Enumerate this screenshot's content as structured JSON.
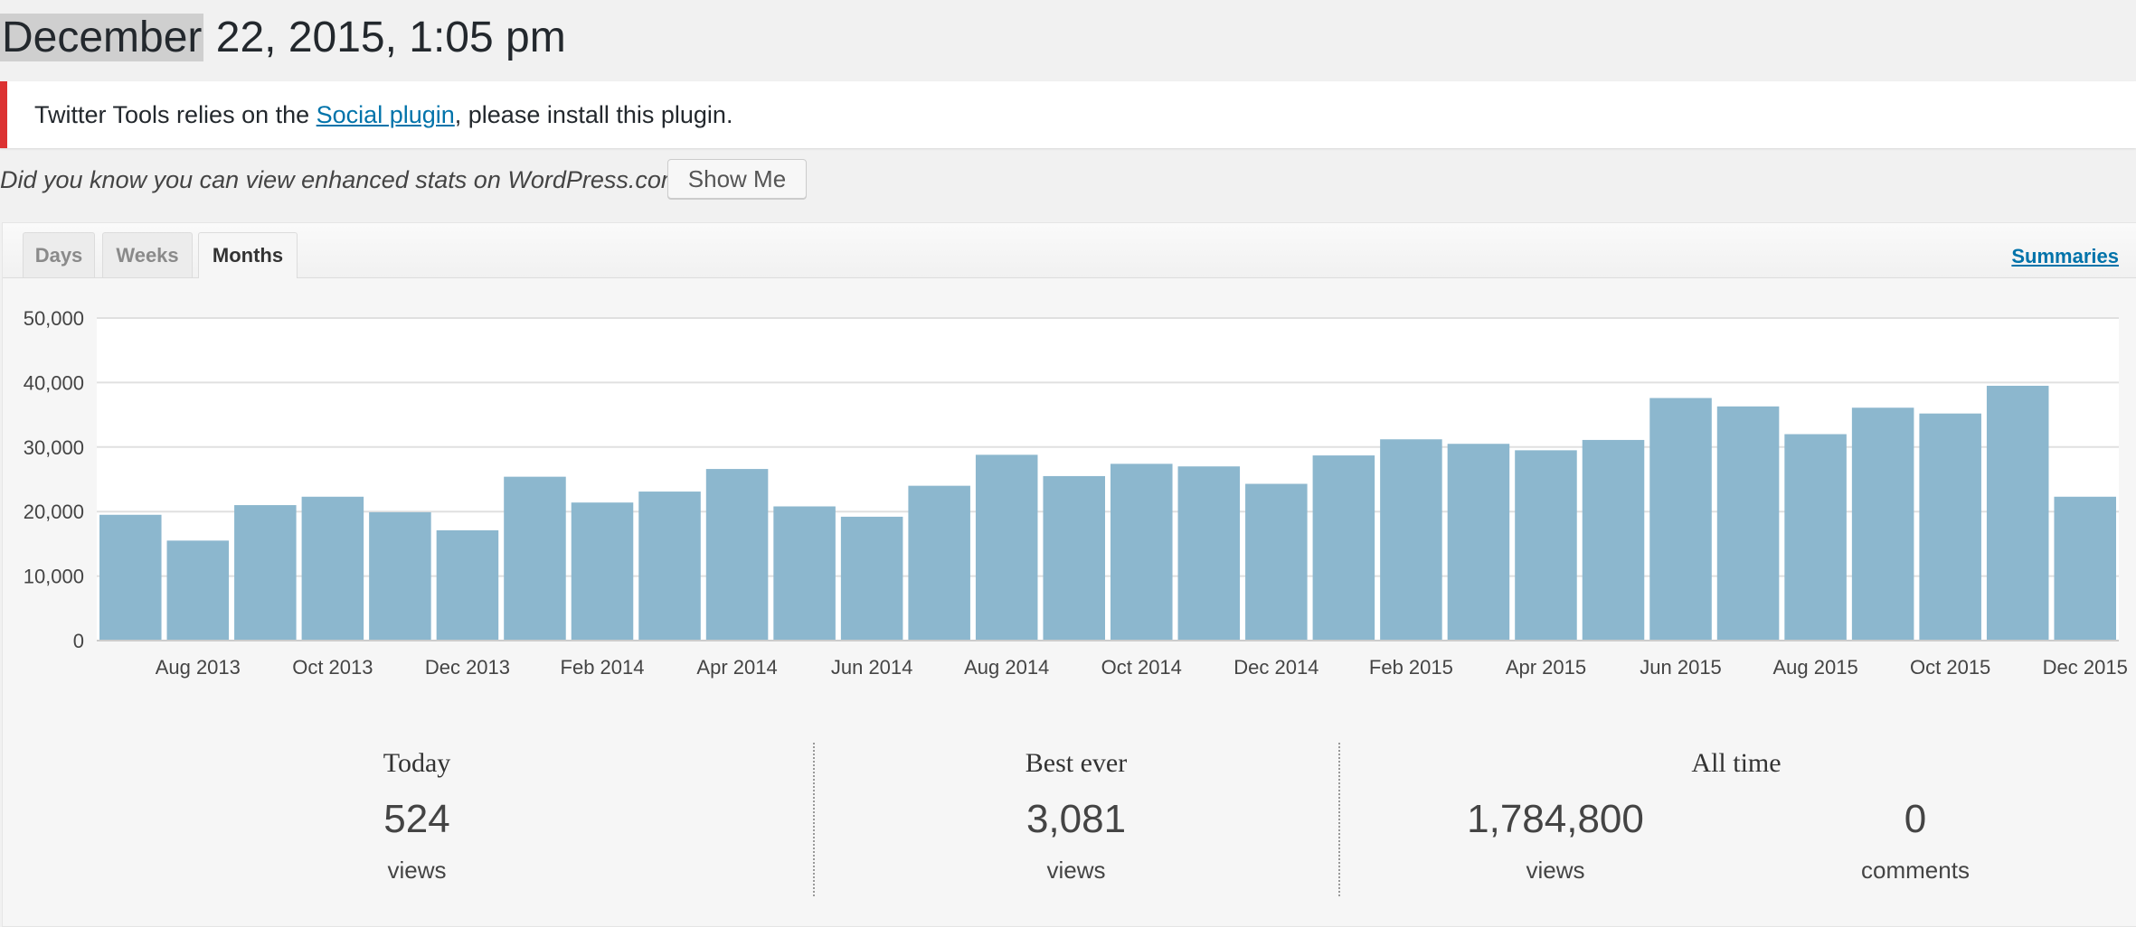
{
  "header": {
    "date_highlight": "December",
    "date_rest": " 22, 2015, 1:05 pm"
  },
  "notice": {
    "before": "Twitter Tools relies on the ",
    "link": "Social plugin",
    "after": ", please install this plugin."
  },
  "promo": {
    "text": "Did you know you can view enhanced stats on WordPress.com?",
    "button": "Show Me"
  },
  "tabs": {
    "days": "Days",
    "weeks": "Weeks",
    "months": "Months",
    "active": "Months"
  },
  "summaries_link": "Summaries",
  "colors": {
    "bar": "#8cb7ce",
    "accent": "#0073aa",
    "error": "#dc3232"
  },
  "chart_data": {
    "type": "bar",
    "categories": [
      "Jul 2013",
      "Aug 2013",
      "Sep 2013",
      "Oct 2013",
      "Nov 2013",
      "Dec 2013",
      "Jan 2014",
      "Feb 2014",
      "Mar 2014",
      "Apr 2014",
      "May 2014",
      "Jun 2014",
      "Jul 2014",
      "Aug 2014",
      "Sep 2014",
      "Oct 2014",
      "Nov 2014",
      "Dec 2014",
      "Jan 2015",
      "Feb 2015",
      "Mar 2015",
      "Apr 2015",
      "May 2015",
      "Jun 2015",
      "Jul 2015",
      "Aug 2015",
      "Sep 2015",
      "Oct 2015",
      "Nov 2015",
      "Dec 2015"
    ],
    "x_tick_labels": [
      "Aug 2013",
      "Oct 2013",
      "Dec 2013",
      "Feb 2014",
      "Apr 2014",
      "Jun 2014",
      "Aug 2014",
      "Oct 2014",
      "Dec 2014",
      "Feb 2015",
      "Apr 2015",
      "Jun 2015",
      "Aug 2015",
      "Oct 2015",
      "Dec 2015"
    ],
    "values": [
      19500,
      15500,
      21000,
      22300,
      19900,
      17100,
      25400,
      21400,
      23100,
      26600,
      20800,
      19200,
      24000,
      28800,
      25500,
      27400,
      27000,
      24300,
      28700,
      31200,
      30500,
      29500,
      31100,
      37600,
      36300,
      32000,
      36100,
      35200,
      39500,
      22300
    ],
    "y_ticks": [
      "0",
      "10,000",
      "20,000",
      "30,000",
      "40,000",
      "50,000"
    ],
    "ylim": [
      0,
      50000
    ],
    "grid": true
  },
  "stats": {
    "today": {
      "title": "Today",
      "value": "524",
      "label": "views"
    },
    "best": {
      "title": "Best ever",
      "value": "3,081",
      "label": "views"
    },
    "alltime": {
      "title": "All time",
      "views_value": "1,784,800",
      "views_label": "views",
      "comments_value": "0",
      "comments_label": "comments"
    }
  }
}
